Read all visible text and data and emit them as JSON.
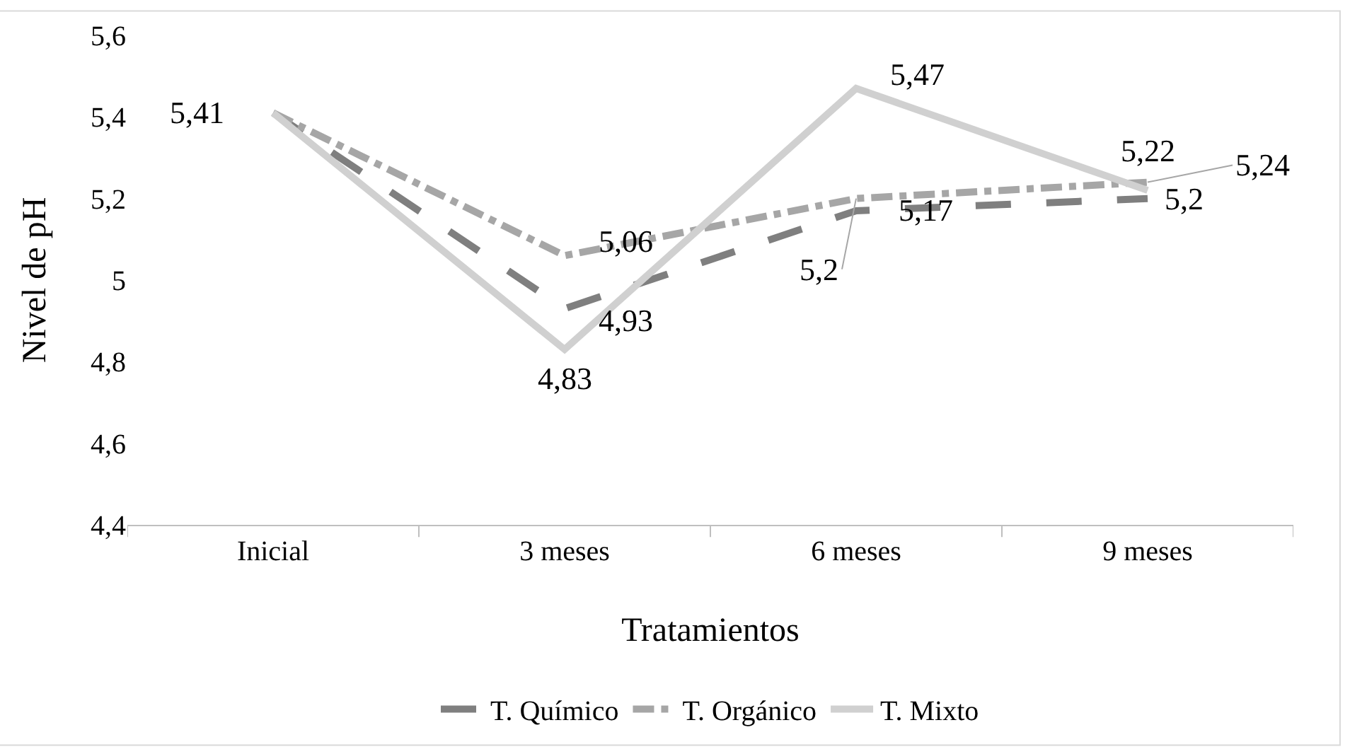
{
  "chart_data": {
    "type": "line",
    "xlabel": "Tratamientos",
    "ylabel": "Nivel de pH",
    "categories": [
      "Inicial",
      "3 meses",
      "6 meses",
      "9 meses"
    ],
    "series": [
      {
        "name": "T. Químico",
        "color": "#7f7f7f",
        "line_style": "dashed",
        "values": [
          5.41,
          4.93,
          5.17,
          5.2
        ],
        "value_labels": [
          "5,41",
          "4,93",
          "5,17",
          "5,2"
        ]
      },
      {
        "name": "T. Orgánico",
        "color": "#a6a6a6",
        "line_style": "dotted",
        "values": [
          5.41,
          5.06,
          5.2,
          5.24
        ],
        "value_labels": [
          null,
          "5,06",
          "5,2",
          "5,24"
        ]
      },
      {
        "name": "T. Mixto",
        "color": "#d0d0d0",
        "line_style": "solid",
        "values": [
          5.41,
          4.83,
          5.47,
          5.22
        ],
        "value_labels": [
          null,
          "4,83",
          "5,47",
          "5,22"
        ]
      }
    ],
    "ylim": [
      4.4,
      5.6
    ],
    "yticks": [
      {
        "value": 4.4,
        "label": "4,4"
      },
      {
        "value": 4.6,
        "label": "4,6"
      },
      {
        "value": 4.8,
        "label": "4,8"
      },
      5,
      {
        "value": 5.2,
        "label": "5,2"
      },
      {
        "value": 5.4,
        "label": "5,4"
      },
      {
        "value": 5.6,
        "label": "5,6"
      }
    ],
    "grid": false,
    "legend": "bottom",
    "marker": "none"
  }
}
